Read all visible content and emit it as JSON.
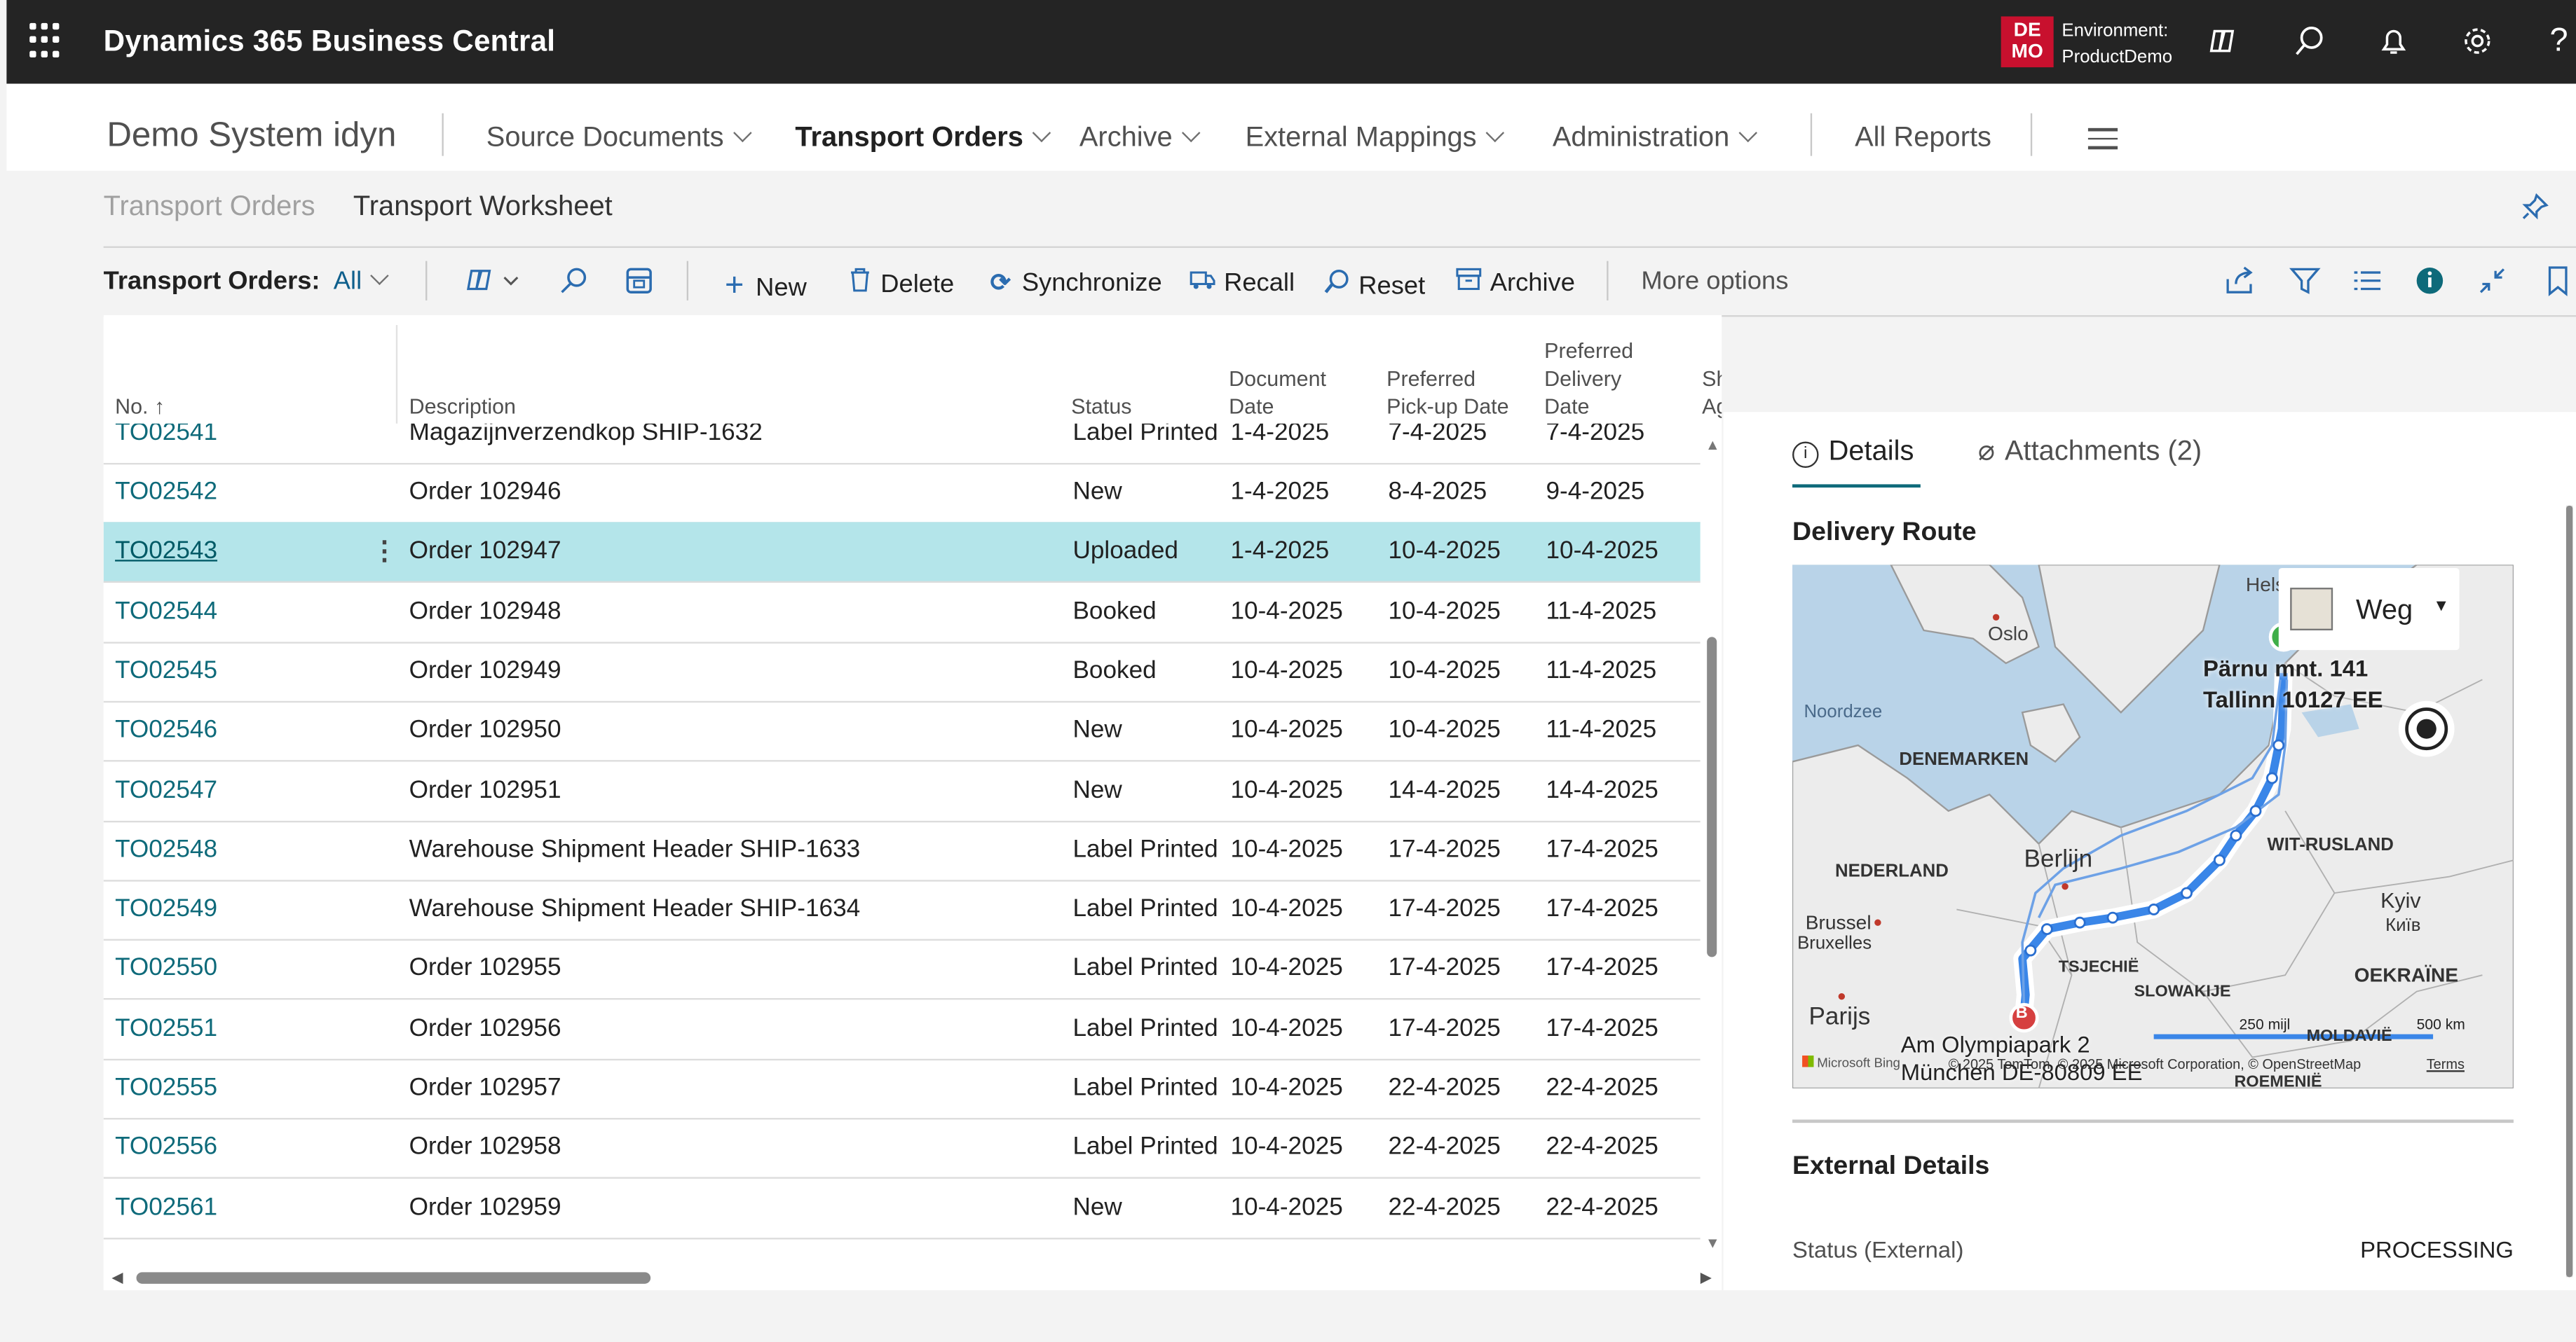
{
  "topbar": {
    "title": "Dynamics 365 Business Central",
    "badge_line1": "DE",
    "badge_line2": "MO",
    "env_label": "Environment:",
    "env_value": "ProductDemo"
  },
  "nav": {
    "company": "Demo System idyn",
    "items": [
      {
        "label": "Source Documents"
      },
      {
        "label": "Transport Orders"
      },
      {
        "label": "Archive"
      },
      {
        "label": "External Mappings"
      },
      {
        "label": "Administration"
      }
    ],
    "all_reports": "All Reports"
  },
  "breadcrumb": {
    "items": [
      "Transport Orders",
      "Transport Worksheet"
    ]
  },
  "actions": {
    "filter_label": "Transport Orders:",
    "filter_value": "All",
    "new": "New",
    "delete": "Delete",
    "synchronize": "Synchronize",
    "recall": "Recall",
    "reset": "Reset",
    "archive": "Archive",
    "more": "More options"
  },
  "table": {
    "headers": {
      "no": "No. ↑",
      "description": "Description",
      "status": "Status",
      "document_date": [
        "Document",
        "Date"
      ],
      "pickup_date": [
        "Preferred",
        "Pick-up Date"
      ],
      "delivery_date": [
        "Preferred",
        "Delivery",
        "Date"
      ],
      "extra": [
        "Sh",
        "Ag"
      ]
    },
    "partial_top": {
      "no": "TO02541",
      "description": "Magazijnverzendkop SHIP-1632",
      "status": "Label Printed",
      "doc": "1-4-2025",
      "pickup": "7-4-2025",
      "delivery": "7-4-2025"
    },
    "rows": [
      {
        "no": "TO02542",
        "description": "Order 102946",
        "status": "New",
        "doc": "1-4-2025",
        "pickup": "8-4-2025",
        "delivery": "9-4-2025"
      },
      {
        "no": "TO02543",
        "description": "Order 102947",
        "status": "Uploaded",
        "doc": "1-4-2025",
        "pickup": "10-4-2025",
        "delivery": "10-4-2025"
      },
      {
        "no": "TO02544",
        "description": "Order 102948",
        "status": "Booked",
        "doc": "10-4-2025",
        "pickup": "10-4-2025",
        "delivery": "11-4-2025"
      },
      {
        "no": "TO02545",
        "description": "Order 102949",
        "status": "Booked",
        "doc": "10-4-2025",
        "pickup": "10-4-2025",
        "delivery": "11-4-2025"
      },
      {
        "no": "TO02546",
        "description": "Order 102950",
        "status": "New",
        "doc": "10-4-2025",
        "pickup": "10-4-2025",
        "delivery": "11-4-2025"
      },
      {
        "no": "TO02547",
        "description": "Order 102951",
        "status": "New",
        "doc": "10-4-2025",
        "pickup": "14-4-2025",
        "delivery": "14-4-2025"
      },
      {
        "no": "TO02548",
        "description": "Warehouse Shipment Header SHIP-1633",
        "status": "Label Printed",
        "doc": "10-4-2025",
        "pickup": "17-4-2025",
        "delivery": "17-4-2025"
      },
      {
        "no": "TO02549",
        "description": "Warehouse Shipment Header SHIP-1634",
        "status": "Label Printed",
        "doc": "10-4-2025",
        "pickup": "17-4-2025",
        "delivery": "17-4-2025"
      },
      {
        "no": "TO02550",
        "description": "Order 102955",
        "status": "Label Printed",
        "doc": "10-4-2025",
        "pickup": "17-4-2025",
        "delivery": "17-4-2025"
      },
      {
        "no": "TO02551",
        "description": "Order 102956",
        "status": "Label Printed",
        "doc": "10-4-2025",
        "pickup": "17-4-2025",
        "delivery": "17-4-2025"
      },
      {
        "no": "TO02555",
        "description": "Order 102957",
        "status": "Label Printed",
        "doc": "10-4-2025",
        "pickup": "22-4-2025",
        "delivery": "22-4-2025"
      },
      {
        "no": "TO02556",
        "description": "Order 102958",
        "status": "Label Printed",
        "doc": "10-4-2025",
        "pickup": "22-4-2025",
        "delivery": "22-4-2025"
      },
      {
        "no": "TO02561",
        "description": "Order 102959",
        "status": "New",
        "doc": "10-4-2025",
        "pickup": "22-4-2025",
        "delivery": "22-4-2025"
      }
    ]
  },
  "factbox": {
    "tab_details": "Details",
    "tab_attachments": "Attachments (2)",
    "route_title": "Delivery Route",
    "map": {
      "style_label": "Weg",
      "cities": [
        "Oslo",
        "Hels",
        "Noordzee",
        "DENEMARKEN",
        "NEDERLAND",
        "Berlijn",
        "Brussel",
        "Bruxelles",
        "Parijs",
        "TSJECHIË",
        "SLOWAKIJE",
        "WIT-RUSLAND",
        "Kyiv",
        "Київ",
        "OEKRAÏNE",
        "MOLDAVIË",
        "ROEMENIË"
      ],
      "origin_line1": "Pärnu mnt. 141",
      "origin_line2": "Tallinn 10127 EE",
      "dest_line1": "Am Olympiapark 2",
      "dest_line2": "München DE-80809 EE",
      "dest_marker": "B",
      "scale_miles": "250 mijl",
      "scale_km": "500 km",
      "attribution": "Microsoft Bing",
      "copyright": "© 2025 TomTom, © 2025 Microsoft Corporation, © OpenStreetMap",
      "terms": "Terms"
    },
    "external_title": "External Details",
    "status_label": "Status (External)",
    "status_value": "PROCESSING"
  }
}
